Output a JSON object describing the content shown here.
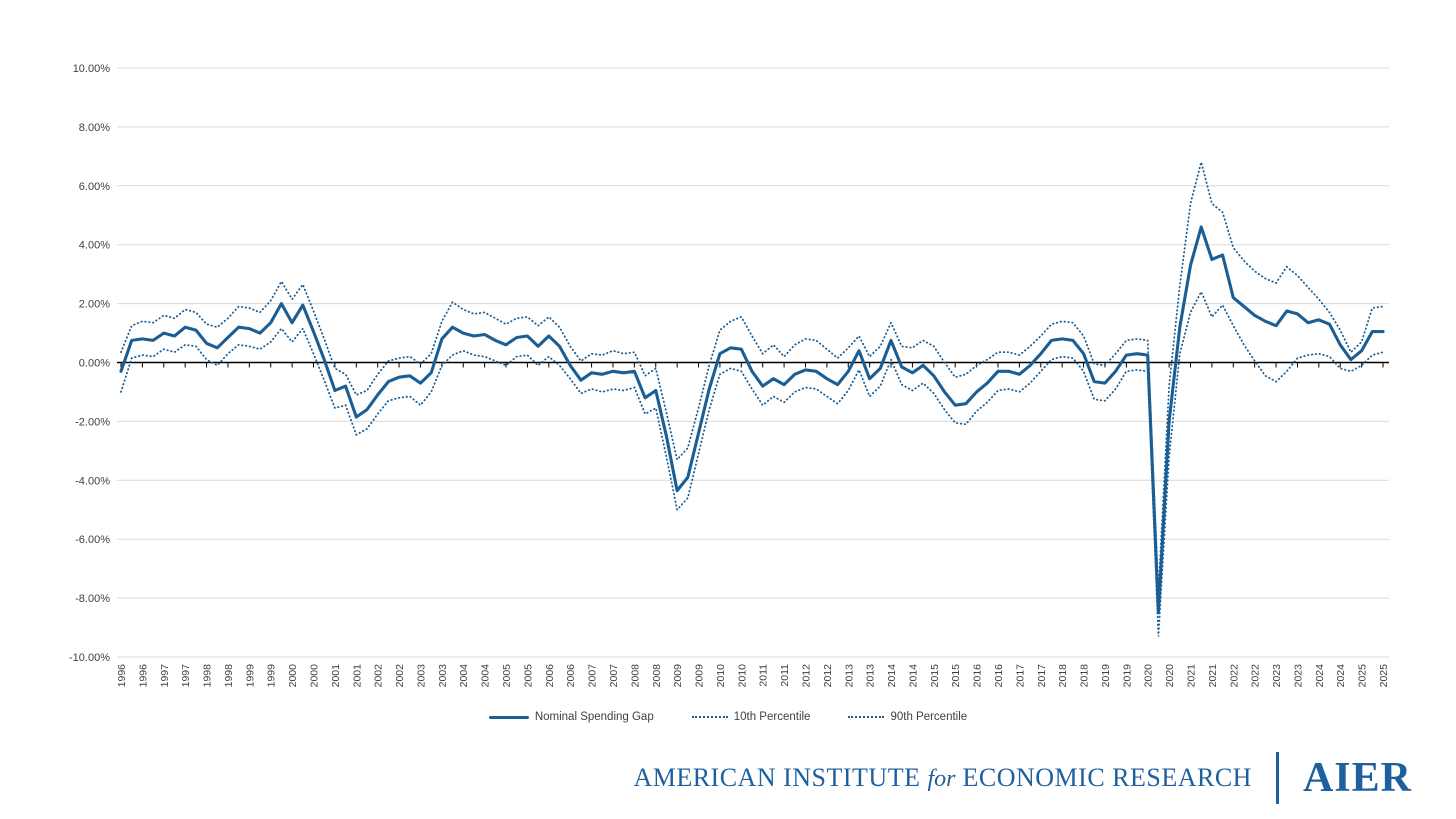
{
  "page": {
    "background": "#ffffff"
  },
  "colors": {
    "line": "#1A5E94",
    "grid": "#D9D9D9",
    "axis": "#000000",
    "tick_text": "#404040",
    "footer_blue": "#1E5F9E"
  },
  "chart_data": {
    "type": "line",
    "title": "",
    "frequency": "quarterly",
    "x_start": "1996 Q1",
    "x_end": "2025 Q3",
    "grid": "horizontal",
    "legend_position": "bottom",
    "ylim": [
      -10,
      10
    ],
    "y_tick_labels": [
      "10.00%",
      "8.00%",
      "6.00%",
      "4.00%",
      "2.00%",
      "0.00%",
      "-2.00%",
      "-4.00%",
      "-6.00%",
      "-8.00%",
      "-10.00%"
    ],
    "y_tick_values": [
      10,
      8,
      6,
      4,
      2,
      0,
      -2,
      -4,
      -6,
      -8,
      -10
    ],
    "x_labels": [
      "1996",
      "1996",
      "1997",
      "1997",
      "1998",
      "1998",
      "1999",
      "1999",
      "2000",
      "2000",
      "2001",
      "2001",
      "2002",
      "2002",
      "2003",
      "2003",
      "2004",
      "2004",
      "2005",
      "2005",
      "2006",
      "2006",
      "2007",
      "2007",
      "2008",
      "2008",
      "2009",
      "2009",
      "2010",
      "2010",
      "2011",
      "2011",
      "2012",
      "2012",
      "2013",
      "2013",
      "2014",
      "2014",
      "2015",
      "2015",
      "2016",
      "2016",
      "2017",
      "2017",
      "2018",
      "2018",
      "2019",
      "2019",
      "2020",
      "2020",
      "2021",
      "2021",
      "2022",
      "2022",
      "2023",
      "2023",
      "2024",
      "2024",
      "2025",
      "2025"
    ],
    "series": [
      {
        "name": "Nominal Spending Gap",
        "style": "solid",
        "color": "#1A5E94",
        "values": [
          -0.3,
          0.75,
          0.8,
          0.75,
          1.0,
          0.9,
          1.2,
          1.1,
          0.65,
          0.5,
          0.85,
          1.2,
          1.15,
          1.0,
          1.35,
          2.0,
          1.35,
          1.95,
          1.05,
          0.1,
          -0.95,
          -0.8,
          -1.85,
          -1.6,
          -1.1,
          -0.65,
          -0.5,
          -0.45,
          -0.7,
          -0.35,
          0.8,
          1.2,
          1.0,
          0.9,
          0.95,
          0.75,
          0.6,
          0.85,
          0.9,
          0.55,
          0.9,
          0.55,
          -0.1,
          -0.6,
          -0.35,
          -0.4,
          -0.3,
          -0.35,
          -0.3,
          -1.2,
          -0.95,
          -2.5,
          -4.35,
          -3.9,
          -2.4,
          -0.9,
          0.3,
          0.5,
          0.45,
          -0.3,
          -0.8,
          -0.55,
          -0.75,
          -0.4,
          -0.25,
          -0.3,
          -0.55,
          -0.75,
          -0.3,
          0.4,
          -0.55,
          -0.2,
          0.75,
          -0.15,
          -0.35,
          -0.1,
          -0.45,
          -1.0,
          -1.45,
          -1.4,
          -1.0,
          -0.7,
          -0.3,
          -0.3,
          -0.4,
          -0.1,
          0.3,
          0.75,
          0.8,
          0.75,
          0.3,
          -0.65,
          -0.7,
          -0.3,
          0.25,
          0.3,
          0.25,
          -8.5,
          -2.0,
          1.2,
          3.3,
          4.6,
          3.5,
          3.65,
          2.2,
          1.9,
          1.6,
          1.4,
          1.25,
          1.75,
          1.65,
          1.35,
          1.45,
          1.3,
          0.6,
          0.1,
          0.4,
          1.05,
          1.05
        ]
      },
      {
        "name": "10th Percentile",
        "style": "dotted",
        "color": "#1A5E94",
        "values": [
          -1.0,
          0.15,
          0.25,
          0.2,
          0.45,
          0.35,
          0.6,
          0.55,
          0.1,
          -0.1,
          0.3,
          0.6,
          0.55,
          0.45,
          0.7,
          1.15,
          0.7,
          1.15,
          0.3,
          -0.6,
          -1.55,
          -1.45,
          -2.45,
          -2.25,
          -1.75,
          -1.3,
          -1.2,
          -1.15,
          -1.45,
          -1.0,
          -0.1,
          0.25,
          0.4,
          0.25,
          0.2,
          0.05,
          -0.1,
          0.2,
          0.25,
          -0.1,
          0.2,
          -0.1,
          -0.55,
          -1.05,
          -0.9,
          -1.0,
          -0.9,
          -0.95,
          -0.85,
          -1.75,
          -1.55,
          -3.2,
          -5.0,
          -4.6,
          -3.1,
          -1.6,
          -0.4,
          -0.2,
          -0.3,
          -0.9,
          -1.45,
          -1.15,
          -1.35,
          -1.0,
          -0.85,
          -0.9,
          -1.15,
          -1.4,
          -0.95,
          -0.25,
          -1.15,
          -0.8,
          0.1,
          -0.75,
          -0.95,
          -0.7,
          -1.05,
          -1.6,
          -2.05,
          -2.1,
          -1.65,
          -1.35,
          -0.95,
          -0.9,
          -1.0,
          -0.7,
          -0.3,
          0.1,
          0.2,
          0.15,
          -0.3,
          -1.25,
          -1.3,
          -0.9,
          -0.3,
          -0.25,
          -0.3,
          -9.3,
          -3.2,
          0.3,
          1.7,
          2.4,
          1.55,
          1.95,
          1.25,
          0.6,
          0.05,
          -0.45,
          -0.65,
          -0.3,
          0.15,
          0.25,
          0.3,
          0.2,
          -0.2,
          -0.3,
          -0.1,
          0.25,
          0.35
        ]
      },
      {
        "name": "90th Percentile",
        "style": "dotted",
        "color": "#1A5E94",
        "values": [
          0.35,
          1.25,
          1.4,
          1.35,
          1.6,
          1.5,
          1.8,
          1.7,
          1.3,
          1.2,
          1.5,
          1.9,
          1.85,
          1.7,
          2.1,
          2.75,
          2.15,
          2.65,
          1.75,
          0.8,
          -0.2,
          -0.4,
          -1.1,
          -0.95,
          -0.4,
          0.05,
          0.15,
          0.2,
          -0.05,
          0.3,
          1.4,
          2.05,
          1.8,
          1.65,
          1.7,
          1.5,
          1.3,
          1.5,
          1.55,
          1.25,
          1.55,
          1.2,
          0.55,
          0.05,
          0.3,
          0.25,
          0.4,
          0.3,
          0.35,
          -0.45,
          -0.2,
          -1.7,
          -3.3,
          -2.9,
          -1.55,
          -0.1,
          1.1,
          1.4,
          1.55,
          0.9,
          0.3,
          0.6,
          0.2,
          0.6,
          0.8,
          0.75,
          0.45,
          0.15,
          0.5,
          0.9,
          0.2,
          0.55,
          1.35,
          0.55,
          0.5,
          0.75,
          0.55,
          0.0,
          -0.5,
          -0.4,
          -0.1,
          0.1,
          0.35,
          0.35,
          0.25,
          0.55,
          0.9,
          1.3,
          1.4,
          1.35,
          0.9,
          -0.05,
          -0.1,
          0.3,
          0.75,
          0.8,
          0.75,
          -7.8,
          -0.8,
          2.6,
          5.4,
          6.8,
          5.4,
          5.1,
          3.9,
          3.45,
          3.1,
          2.85,
          2.7,
          3.25,
          2.95,
          2.55,
          2.15,
          1.7,
          1.1,
          0.35,
          0.7,
          1.85,
          1.9
        ]
      }
    ]
  },
  "footer": {
    "institute_part1": "AMERICAN INSTITUTE",
    "institute_for": "for",
    "institute_part2": "ECONOMIC RESEARCH",
    "logo_text": "AIER"
  }
}
